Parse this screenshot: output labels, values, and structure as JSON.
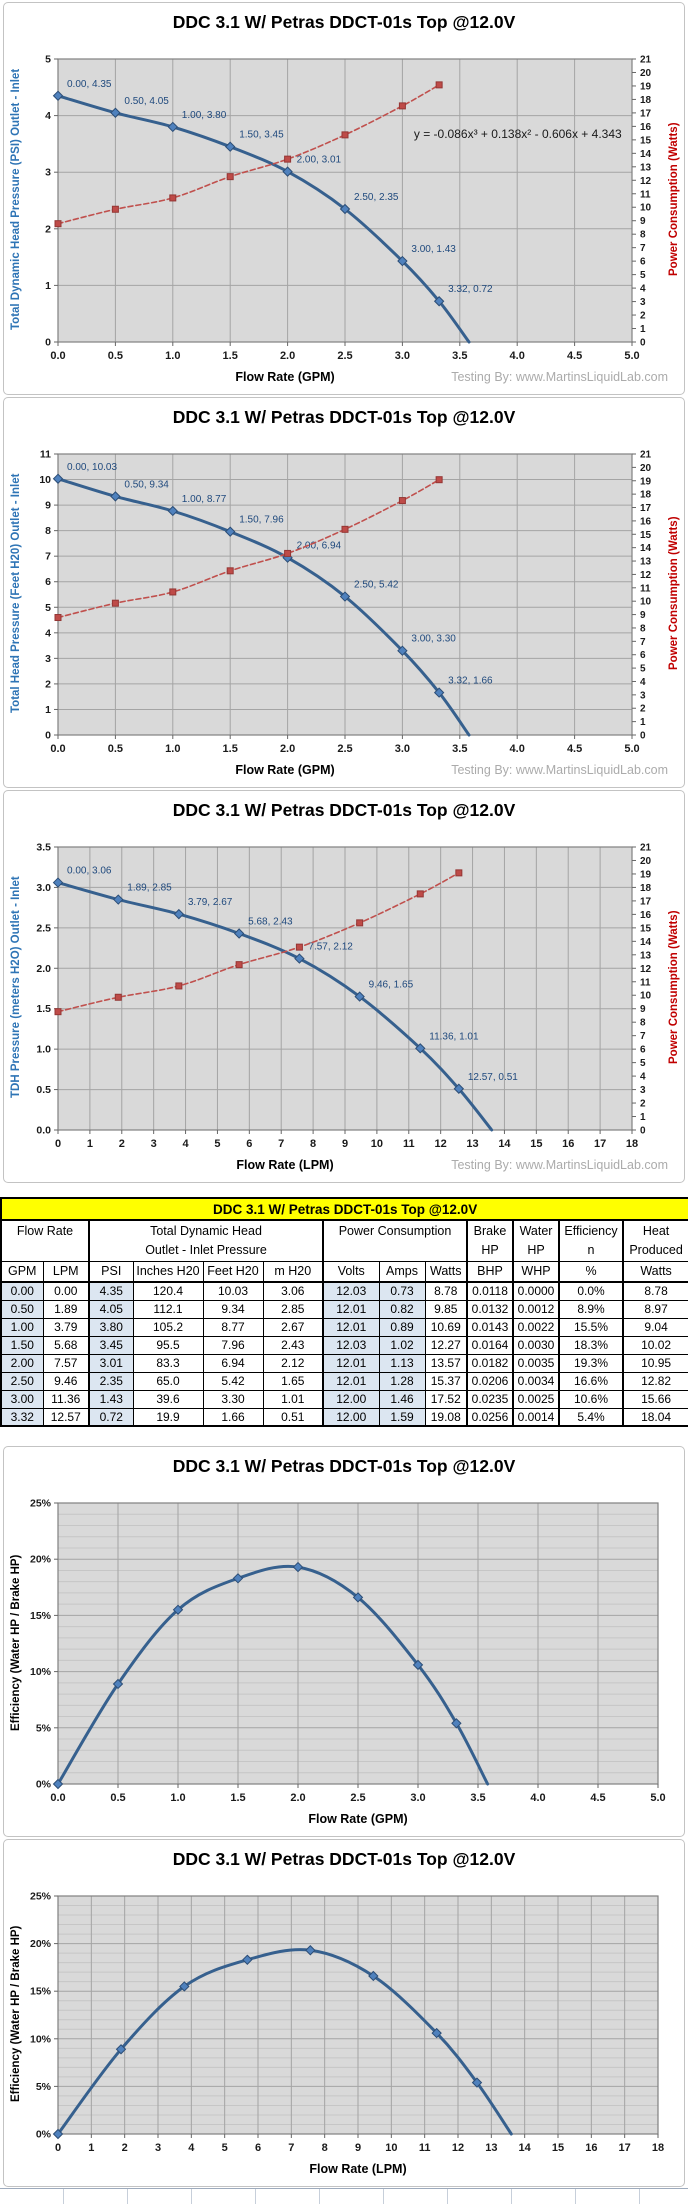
{
  "strings": {
    "watermark": "Testing By: www.MartinsLiquidLab.com"
  },
  "table": {
    "title": "DDC 3.1 W/ Petras DDCT-01s Top @12.0V",
    "groups": {
      "flow": "Flow Rate",
      "tdh1": "Total Dynamic Head",
      "tdh2": "Outlet - Inlet Pressure",
      "power": "Power Consumption",
      "brake1": "Brake",
      "brake2": "HP",
      "water1": "Water",
      "water2": "HP",
      "eff1": "Efficiency",
      "eff2": "n",
      "heat1": "Heat",
      "heat2": "Produced"
    },
    "units": [
      "GPM",
      "LPM",
      "PSI",
      "Inches H20",
      "Feet H20",
      "m H20",
      "Volts",
      "Amps",
      "Watts",
      "BHP",
      "WHP",
      "%",
      "Watts"
    ],
    "shaded_columns": [
      0,
      2,
      6,
      7
    ],
    "rows": [
      [
        "0.00",
        "0.00",
        "4.35",
        "120.4",
        "10.03",
        "3.06",
        "12.03",
        "0.73",
        "8.78",
        "0.0118",
        "0.0000",
        "0.0%",
        "8.78"
      ],
      [
        "0.50",
        "1.89",
        "4.05",
        "112.1",
        "9.34",
        "2.85",
        "12.01",
        "0.82",
        "9.85",
        "0.0132",
        "0.0012",
        "8.9%",
        "8.97"
      ],
      [
        "1.00",
        "3.79",
        "3.80",
        "105.2",
        "8.77",
        "2.67",
        "12.01",
        "0.89",
        "10.69",
        "0.0143",
        "0.0022",
        "15.5%",
        "9.04"
      ],
      [
        "1.50",
        "5.68",
        "3.45",
        "95.5",
        "7.96",
        "2.43",
        "12.03",
        "1.02",
        "12.27",
        "0.0164",
        "0.0030",
        "18.3%",
        "10.02"
      ],
      [
        "2.00",
        "7.57",
        "3.01",
        "83.3",
        "6.94",
        "2.12",
        "12.01",
        "1.13",
        "13.57",
        "0.0182",
        "0.0035",
        "19.3%",
        "10.95"
      ],
      [
        "2.50",
        "9.46",
        "2.35",
        "65.0",
        "5.42",
        "1.65",
        "12.01",
        "1.28",
        "15.37",
        "0.0206",
        "0.0034",
        "16.6%",
        "12.82"
      ],
      [
        "3.00",
        "11.36",
        "1.43",
        "39.6",
        "3.30",
        "1.01",
        "12.00",
        "1.46",
        "17.52",
        "0.0235",
        "0.0025",
        "10.6%",
        "15.66"
      ],
      [
        "3.32",
        "12.57",
        "0.72",
        "19.9",
        "1.66",
        "0.51",
        "12.00",
        "1.59",
        "19.08",
        "0.0256",
        "0.0014",
        "5.4%",
        "18.04"
      ]
    ]
  },
  "chart_data": [
    {
      "type": "line",
      "title": "DDC 3.1 W/ Petras DDCT-01s Top @12.0V",
      "x_axis": {
        "title": "Flow Rate (GPM)",
        "min": 0,
        "max": 5,
        "step": 0.5,
        "fmt": "d1"
      },
      "y_left": {
        "title": "Total Dynamic Head Pressure (PSI)  Outlet - Inlet",
        "min": 0,
        "max": 5,
        "step": 1,
        "fmt": "d0",
        "color": "#2E74B5"
      },
      "y_right": {
        "title": "Power Consumption (Watts)",
        "min": 0,
        "max": 21,
        "step": 1,
        "fmt": "d0",
        "color": "#C00000"
      },
      "watermark": "Testing By: www.MartinsLiquidLab.com",
      "annotation": {
        "text": "y = -0.086x³ + 0.138x² - 0.606x + 4.343",
        "fx": 0.62,
        "fy": 0.28
      },
      "series": [
        {
          "name": "Total Dynamic Head (PSI)",
          "color": "#36608E",
          "marker": "diamond",
          "marker_fill": "#4F81BD",
          "x": [
            0.0,
            0.5,
            1.0,
            1.5,
            2.0,
            2.5,
            3.0,
            3.32
          ],
          "y": [
            4.35,
            4.05,
            3.8,
            3.45,
            3.01,
            2.35,
            1.43,
            0.72
          ],
          "labels": [
            "0.00, 4.35",
            "0.50, 4.05",
            "1.00, 3.80",
            "1.50, 3.45",
            "2.00, 3.01",
            "2.50, 2.35",
            "3.00, 1.43",
            "3.32, 0.72"
          ],
          "extend": [
            3.58,
            0
          ]
        },
        {
          "name": "Power Consumption (Watts)",
          "axis": "right",
          "color": "#C0504D",
          "marker": "square",
          "marker_fill": "#BE4B48",
          "dash": "5,3",
          "x": [
            0.0,
            0.5,
            1.0,
            1.5,
            2.0,
            2.5,
            3.0,
            3.32
          ],
          "y": [
            8.78,
            9.85,
            10.69,
            12.27,
            13.57,
            15.37,
            17.52,
            19.08
          ]
        }
      ]
    },
    {
      "type": "line",
      "title": "DDC 3.1 W/ Petras DDCT-01s Top @12.0V",
      "x_axis": {
        "title": "Flow Rate (GPM)",
        "min": 0,
        "max": 5,
        "step": 0.5,
        "fmt": "d1"
      },
      "y_left": {
        "title": "Total Head Pressure (Feet H20) Outlet - Inlet",
        "min": 0,
        "max": 11,
        "step": 1,
        "fmt": "d0",
        "color": "#2E74B5"
      },
      "y_right": {
        "title": "Power Consumption (Watts)",
        "min": 0,
        "max": 21,
        "step": 1,
        "fmt": "d0",
        "color": "#C00000"
      },
      "watermark": "Testing By: www.MartinsLiquidLab.com",
      "series": [
        {
          "name": "Total Head (Feet H20)",
          "color": "#36608E",
          "marker": "diamond",
          "marker_fill": "#4F81BD",
          "x": [
            0.0,
            0.5,
            1.0,
            1.5,
            2.0,
            2.5,
            3.0,
            3.32
          ],
          "y": [
            10.03,
            9.34,
            8.77,
            7.96,
            6.94,
            5.42,
            3.3,
            1.66
          ],
          "labels": [
            "0.00, 10.03",
            "0.50, 9.34",
            "1.00, 8.77",
            "1.50, 7.96",
            "2.00, 6.94",
            "2.50, 5.42",
            "3.00, 3.30",
            "3.32, 1.66"
          ],
          "extend": [
            3.58,
            0
          ]
        },
        {
          "name": "Power Consumption (Watts)",
          "axis": "right",
          "color": "#C0504D",
          "marker": "square",
          "marker_fill": "#BE4B48",
          "dash": "5,3",
          "x": [
            0.0,
            0.5,
            1.0,
            1.5,
            2.0,
            2.5,
            3.0,
            3.32
          ],
          "y": [
            8.78,
            9.85,
            10.69,
            12.27,
            13.57,
            15.37,
            17.52,
            19.08
          ]
        }
      ]
    },
    {
      "type": "line",
      "title": "DDC 3.1 W/ Petras DDCT-01s Top @12.0V",
      "x_axis": {
        "title": "Flow Rate (LPM)",
        "min": 0,
        "max": 18,
        "step": 1,
        "fmt": "d0"
      },
      "y_left": {
        "title": "TDH Pressure (meters H2O)  Outlet - Inlet",
        "min": 0,
        "max": 3.5,
        "step": 0.5,
        "fmt": "d1",
        "color": "#2E74B5"
      },
      "y_right": {
        "title": "Power Consumption (Watts)",
        "min": 0,
        "max": 21,
        "step": 1,
        "fmt": "d0",
        "color": "#C00000"
      },
      "watermark": "Testing By: www.MartinsLiquidLab.com",
      "series": [
        {
          "name": "TDH (meters H2O)",
          "color": "#36608E",
          "marker": "diamond",
          "marker_fill": "#4F81BD",
          "x": [
            0.0,
            1.89,
            3.79,
            5.68,
            7.57,
            9.46,
            11.36,
            12.57
          ],
          "y": [
            3.06,
            2.85,
            2.67,
            2.43,
            2.12,
            1.65,
            1.01,
            0.51
          ],
          "labels": [
            "0.00, 3.06",
            "1.89, 2.85",
            "3.79, 2.67",
            "5.68, 2.43",
            "7.57, 2.12",
            "9.46, 1.65",
            "11.36, 1.01",
            "12.57, 0.51"
          ],
          "extend": [
            13.6,
            0
          ]
        },
        {
          "name": "Power Consumption (Watts)",
          "axis": "right",
          "color": "#C0504D",
          "marker": "square",
          "marker_fill": "#BE4B48",
          "dash": "5,3",
          "x": [
            0.0,
            1.89,
            3.79,
            5.68,
            7.57,
            9.46,
            11.36,
            12.57
          ],
          "y": [
            8.78,
            9.85,
            10.69,
            12.27,
            13.57,
            15.37,
            17.52,
            19.08
          ]
        }
      ]
    },
    {
      "type": "line",
      "title": "DDC 3.1 W/ Petras DDCT-01s Top @12.0V",
      "x_axis": {
        "title": "Flow Rate (GPM)",
        "min": 0,
        "max": 5,
        "step": 0.5,
        "fmt": "d1"
      },
      "y_left": {
        "title": "Efficiency  (Water HP / Brake  HP)",
        "min": 0,
        "max": 25,
        "step": 5,
        "minor_step": 1,
        "fmt": "pct",
        "color": "#000000"
      },
      "series": [
        {
          "name": "Efficiency %",
          "color": "#36608E",
          "marker": "diamond",
          "marker_fill": "#4F81BD",
          "x": [
            0.0,
            0.5,
            1.0,
            1.5,
            2.0,
            2.5,
            3.0,
            3.32
          ],
          "y": [
            0.0,
            8.9,
            15.5,
            18.3,
            19.3,
            16.6,
            10.6,
            5.4
          ],
          "extend": [
            3.58,
            0
          ]
        }
      ]
    },
    {
      "type": "line",
      "title": "DDC 3.1 W/ Petras DDCT-01s Top @12.0V",
      "x_axis": {
        "title": "Flow Rate (LPM)",
        "min": 0,
        "max": 18,
        "step": 1,
        "fmt": "d0"
      },
      "y_left": {
        "title": "Efficiency (Water HP / Brake HP)",
        "min": 0,
        "max": 25,
        "step": 5,
        "minor_step": 1,
        "fmt": "pct",
        "color": "#000000"
      },
      "series": [
        {
          "name": "Efficiency %",
          "color": "#36608E",
          "marker": "diamond",
          "marker_fill": "#4F81BD",
          "x": [
            0.0,
            1.89,
            3.79,
            5.68,
            7.57,
            9.46,
            11.36,
            12.57
          ],
          "y": [
            0.0,
            8.9,
            15.5,
            18.3,
            19.3,
            16.6,
            10.6,
            5.4
          ],
          "extend": [
            13.6,
            0
          ]
        }
      ]
    }
  ]
}
